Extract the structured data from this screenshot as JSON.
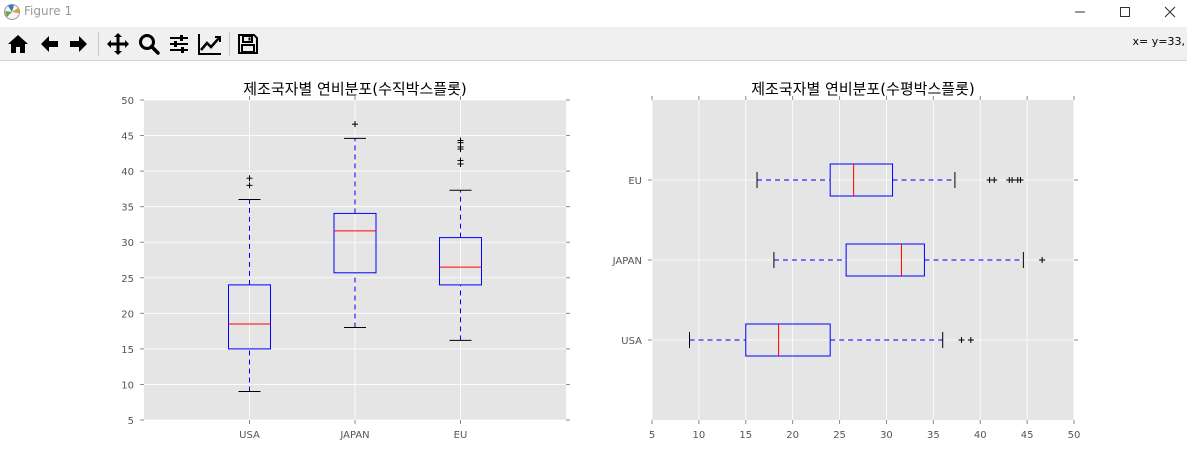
{
  "window": {
    "title": "Figure 1",
    "app_icon": "matplotlib-icon",
    "controls": [
      "minimize-icon",
      "maximize-icon",
      "close-icon"
    ]
  },
  "toolbar": {
    "buttons": [
      {
        "name": "home-button",
        "icon": "home-icon"
      },
      {
        "name": "back-button",
        "icon": "arrow-left-icon"
      },
      {
        "name": "forward-button",
        "icon": "arrow-right-icon"
      },
      {
        "name": "pan-button",
        "icon": "move-icon"
      },
      {
        "name": "zoom-button",
        "icon": "magnifier-icon"
      },
      {
        "name": "subplots-button",
        "icon": "sliders-icon"
      },
      {
        "name": "customize-button",
        "icon": "chart-line-icon"
      },
      {
        "name": "save-button",
        "icon": "floppy-disk-icon"
      }
    ],
    "coordinates": "x= y=33,"
  },
  "colors": {
    "axes_bg": "#e5e5e5",
    "grid": "#ffffff",
    "box": "#0000ff",
    "median": "#ff0000",
    "cap": "#000000"
  },
  "chart_data": [
    {
      "type": "boxplot",
      "orientation": "vertical",
      "title": "제조국자별 연비분포(수직박스플롯)",
      "categories": [
        "USA",
        "JAPAN",
        "EU"
      ],
      "ylim": [
        5,
        50
      ],
      "yticks": [
        5,
        10,
        15,
        20,
        25,
        30,
        35,
        40,
        45,
        50
      ],
      "grid": true,
      "boxes": [
        {
          "name": "USA",
          "whisker_low": 9,
          "q1": 15,
          "median": 18.5,
          "q3": 24,
          "whisker_high": 36,
          "fliers": [
            38,
            39
          ]
        },
        {
          "name": "JAPAN",
          "whisker_low": 18,
          "q1": 25.7,
          "median": 31.6,
          "q3": 34.05,
          "whisker_high": 44.6,
          "fliers": [
            46.6
          ]
        },
        {
          "name": "EU",
          "whisker_low": 16.2,
          "q1": 24,
          "median": 26.5,
          "q3": 30.65,
          "whisker_high": 37.3,
          "fliers": [
            41,
            41.5,
            43.1,
            43.4,
            44,
            44.3
          ]
        }
      ]
    },
    {
      "type": "boxplot",
      "orientation": "horizontal",
      "title": "제조국자별 연비분포(수평박스플롯)",
      "categories": [
        "USA",
        "JAPAN",
        "EU"
      ],
      "xlim": [
        5,
        50
      ],
      "xticks": [
        5,
        10,
        15,
        20,
        25,
        30,
        35,
        40,
        45,
        50
      ],
      "grid": true,
      "boxes": [
        {
          "name": "USA",
          "whisker_low": 9,
          "q1": 15,
          "median": 18.5,
          "q3": 24,
          "whisker_high": 36,
          "fliers": [
            38,
            39
          ]
        },
        {
          "name": "JAPAN",
          "whisker_low": 18,
          "q1": 25.7,
          "median": 31.6,
          "q3": 34.05,
          "whisker_high": 44.6,
          "fliers": [
            46.6
          ]
        },
        {
          "name": "EU",
          "whisker_low": 16.2,
          "q1": 24,
          "median": 26.5,
          "q3": 30.65,
          "whisker_high": 37.3,
          "fliers": [
            41,
            41.5,
            43.1,
            43.4,
            44,
            44.3
          ]
        }
      ]
    }
  ]
}
